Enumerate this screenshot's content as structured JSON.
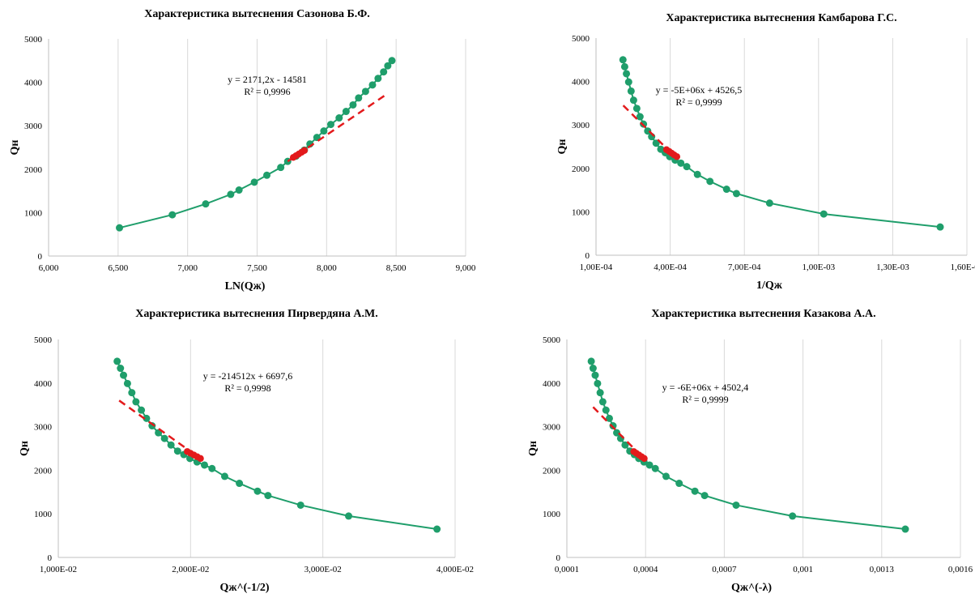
{
  "chart_data": [
    {
      "type": "scatter",
      "title": "Характеристика вытеснения Сазонова Б.Ф.",
      "xlabel": "LN(Qж)",
      "ylabel": "Qн",
      "xlim": [
        6.0,
        9.0
      ],
      "ylim": [
        0,
        5000
      ],
      "x_ticks": [
        6.0,
        6.5,
        7.0,
        7.5,
        8.0,
        8.5,
        9.0
      ],
      "x_tick_labels": [
        "6,000",
        "6,500",
        "7,000",
        "7,500",
        "8,000",
        "8,500",
        "9,000"
      ],
      "y_ticks": [
        0,
        1000,
        2000,
        3000,
        4000,
        5000
      ],
      "y_tick_labels": [
        "0",
        "1000",
        "2000",
        "3000",
        "4000",
        "5000"
      ],
      "grid": "vertical",
      "equation": "y = 2171,2x  - 14581",
      "r_squared": "R² = 0,9996",
      "series": [
        {
          "color": "#1f9e6b",
          "style": "line-markers",
          "x": [
            6.51,
            6.89,
            7.13,
            7.31,
            7.37,
            7.48,
            7.57,
            7.67,
            7.72,
            7.78,
            7.84,
            7.88,
            7.93,
            7.98,
            8.03,
            8.09,
            8.14,
            8.19,
            8.23,
            8.28,
            8.33,
            8.37,
            8.41,
            8.44,
            8.47
          ],
          "y": [
            650,
            950,
            1200,
            1420,
            1520,
            1700,
            1860,
            2040,
            2180,
            2300,
            2440,
            2580,
            2730,
            2880,
            3030,
            3180,
            3330,
            3480,
            3640,
            3790,
            3940,
            4090,
            4240,
            4380,
            4500
          ]
        },
        {
          "color": "#e31a1c",
          "style": "markers",
          "x": [
            7.76,
            7.78,
            7.8,
            7.82,
            7.84
          ],
          "y": [
            2270,
            2310,
            2350,
            2390,
            2430
          ]
        },
        {
          "color": "#e31a1c",
          "style": "dashed-line",
          "x": [
            7.72,
            8.42
          ],
          "y": [
            2180,
            3700
          ]
        }
      ]
    },
    {
      "type": "scatter",
      "title": "Характеристика  вытеснения Камбарова Г.С.",
      "xlabel": "1/Qж",
      "ylabel": "Qн",
      "xlim": [
        0.0001,
        0.0016
      ],
      "ylim": [
        0,
        5000
      ],
      "x_ticks": [
        0.0001,
        0.0004,
        0.0007,
        0.001,
        0.0013,
        0.0016
      ],
      "x_tick_labels": [
        "1,00E-04",
        "4,00E-04",
        "7,00E-04",
        "1,00E-03",
        "1,30E-03",
        "1,60E-03"
      ],
      "y_ticks": [
        0,
        1000,
        2000,
        3000,
        4000,
        5000
      ],
      "y_tick_labels": [
        "0",
        "1000",
        "2000",
        "3000",
        "4000",
        "5000"
      ],
      "grid": "vertical",
      "equation": "y = -5E+06x + 4526,5",
      "r_squared": "R² = 0,9999",
      "series": [
        {
          "color": "#1f9e6b",
          "style": "line-markers",
          "x": [
            0.000209,
            0.000216,
            0.000223,
            0.000232,
            0.000242,
            0.000252,
            0.000265,
            0.000278,
            0.000292,
            0.000309,
            0.000325,
            0.000343,
            0.000362,
            0.00038,
            0.000398,
            0.00042,
            0.000443,
            0.000467,
            0.00051,
            0.000561,
            0.000628,
            0.000668,
            0.000802,
            0.001021,
            0.001492
          ],
          "y": [
            4500,
            4340,
            4180,
            3990,
            3780,
            3570,
            3380,
            3190,
            3020,
            2860,
            2730,
            2580,
            2440,
            2360,
            2270,
            2190,
            2120,
            2040,
            1860,
            1700,
            1520,
            1420,
            1200,
            950,
            650
          ]
        },
        {
          "color": "#e31a1c",
          "style": "markers",
          "x": [
            0.000385,
            0.000396,
            0.000406,
            0.000416,
            0.000427
          ],
          "y": [
            2430,
            2390,
            2350,
            2310,
            2270
          ]
        },
        {
          "color": "#e31a1c",
          "style": "dashed-line",
          "x": [
            0.00021,
            0.000405
          ],
          "y": [
            3450,
            2350
          ]
        }
      ]
    },
    {
      "type": "scatter",
      "title": "Характеристика  вытеснения Пирвердяна А.М.",
      "xlabel": "Qж^(-1/2)",
      "ylabel": "Qн",
      "xlim": [
        0.01,
        0.04
      ],
      "ylim": [
        0,
        5000
      ],
      "x_ticks": [
        0.01,
        0.02,
        0.03,
        0.04
      ],
      "x_tick_labels": [
        "1,000E-02",
        "2,000E-02",
        "3,000E-02",
        "4,000E-02"
      ],
      "y_ticks": [
        0,
        1000,
        2000,
        3000,
        4000,
        5000
      ],
      "y_tick_labels": [
        "0",
        "1000",
        "2000",
        "3000",
        "4000",
        "5000"
      ],
      "grid": "vertical",
      "equation": "y = -214512x + 6697,6",
      "r_squared": "R² = 0,9998",
      "series": [
        {
          "color": "#1f9e6b",
          "style": "line-markers",
          "x": [
            0.01445,
            0.0147,
            0.01493,
            0.01523,
            0.01556,
            0.01587,
            0.01628,
            0.01667,
            0.01709,
            0.01757,
            0.01803,
            0.01852,
            0.01902,
            0.01949,
            0.01995,
            0.02049,
            0.02105,
            0.02162,
            0.02258,
            0.02369,
            0.02506,
            0.02585,
            0.02832,
            0.03195,
            0.03863
          ],
          "y": [
            4500,
            4340,
            4180,
            3990,
            3780,
            3570,
            3380,
            3190,
            3020,
            2860,
            2730,
            2580,
            2440,
            2360,
            2270,
            2190,
            2120,
            2040,
            1860,
            1700,
            1520,
            1420,
            1200,
            950,
            650
          ]
        },
        {
          "color": "#e31a1c",
          "style": "markers",
          "x": [
            0.01975,
            0.02,
            0.02025,
            0.0205,
            0.02075
          ],
          "y": [
            2430,
            2390,
            2350,
            2310,
            2270
          ]
        },
        {
          "color": "#e31a1c",
          "style": "dashed-line",
          "x": [
            0.0146,
            0.0206
          ],
          "y": [
            3600,
            2300
          ]
        }
      ]
    },
    {
      "type": "scatter",
      "title": "Характеристика  вытеснения Казакова А.А.",
      "xlabel": "Qж^(-λ)",
      "ylabel": "Qн",
      "xlim": [
        0.0001,
        0.0016
      ],
      "ylim": [
        0,
        5000
      ],
      "x_ticks": [
        0.0001,
        0.0004,
        0.0007,
        0.001,
        0.0013,
        0.0016
      ],
      "x_tick_labels": [
        "0,0001",
        "0,0004",
        "0,0007",
        "0,001",
        "0,0013",
        "0,0016"
      ],
      "y_ticks": [
        0,
        1000,
        2000,
        3000,
        4000,
        5000
      ],
      "y_tick_labels": [
        "0",
        "1000",
        "2000",
        "3000",
        "4000",
        "5000"
      ],
      "grid": "vertical",
      "equation": "y = -6E+06x + 4502,4",
      "r_squared": "R² = 0,9999",
      "series": [
        {
          "color": "#1f9e6b",
          "style": "line-markers",
          "x": [
            0.000193,
            0.0002,
            0.000208,
            0.000217,
            0.000227,
            0.000237,
            0.000249,
            0.000262,
            0.000276,
            0.00029,
            0.000305,
            0.000322,
            0.00034,
            0.000357,
            0.000374,
            0.000394,
            0.000415,
            0.000437,
            0.000478,
            0.000528,
            0.000588,
            0.000625,
            0.000745,
            0.00096,
            0.00139
          ],
          "y": [
            4500,
            4340,
            4180,
            3990,
            3780,
            3570,
            3380,
            3190,
            3020,
            2860,
            2730,
            2580,
            2440,
            2360,
            2270,
            2190,
            2120,
            2040,
            1860,
            1700,
            1520,
            1420,
            1200,
            950,
            650
          ]
        },
        {
          "color": "#e31a1c",
          "style": "markers",
          "x": [
            0.000355,
            0.000365,
            0.000375,
            0.000385,
            0.000395
          ],
          "y": [
            2430,
            2390,
            2350,
            2310,
            2270
          ]
        },
        {
          "color": "#e31a1c",
          "style": "dashed-line",
          "x": [
            0.0002,
            0.00038
          ],
          "y": [
            3450,
            2350
          ]
        }
      ]
    }
  ]
}
